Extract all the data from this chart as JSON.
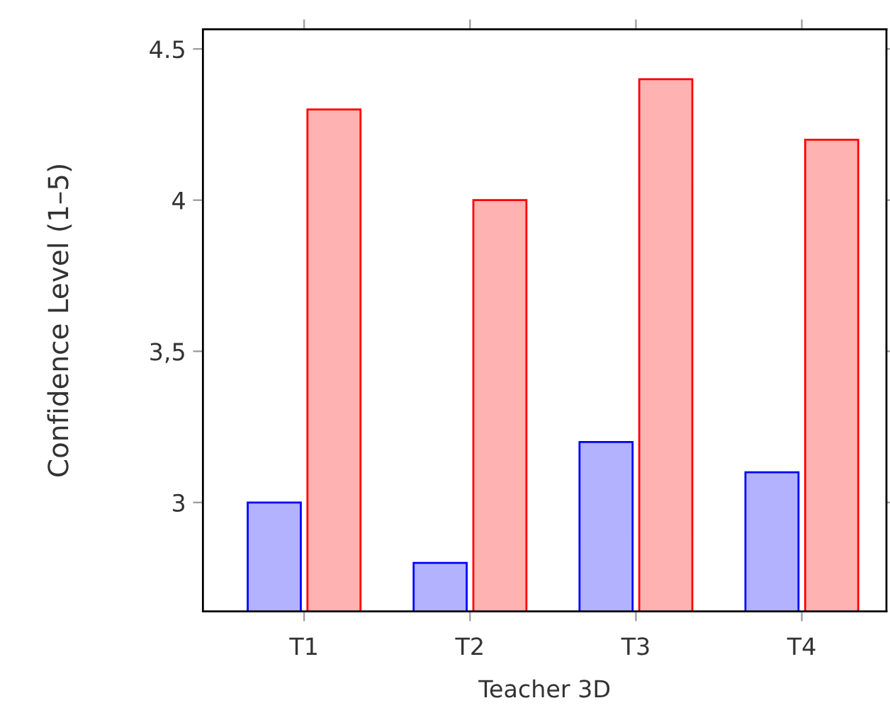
{
  "chart_data": {
    "type": "bar",
    "xlabel": "Teacher 3D",
    "ylabel": "Confidence Level (1–5)",
    "categories": [
      "T1",
      "T2",
      "T3",
      "T4"
    ],
    "series": [
      {
        "color": "#0000ff",
        "values": [
          3.0,
          2.8,
          3.2,
          3.1
        ]
      },
      {
        "color": "#ff0000",
        "values": [
          4.3,
          4.0,
          4.4,
          4.2
        ]
      }
    ],
    "ylim": [
      2.64,
      4.565
    ],
    "yticks": [
      3,
      {
        "value": 3.5,
        "label": "3,5"
      },
      4,
      4.5
    ]
  }
}
